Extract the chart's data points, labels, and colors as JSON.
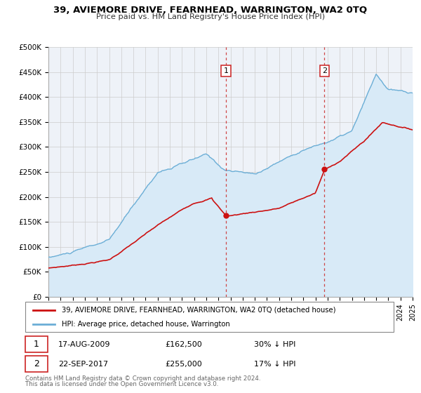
{
  "title": "39, AVIEMORE DRIVE, FEARNHEAD, WARRINGTON, WA2 0TQ",
  "subtitle": "Price paid vs. HM Land Registry's House Price Index (HPI)",
  "ylim": [
    0,
    500000
  ],
  "xlim_start": 1995,
  "xlim_end": 2025,
  "yticks": [
    0,
    50000,
    100000,
    150000,
    200000,
    250000,
    300000,
    350000,
    400000,
    450000,
    500000
  ],
  "ytick_labels": [
    "£0",
    "£50K",
    "£100K",
    "£150K",
    "£200K",
    "£250K",
    "£300K",
    "£350K",
    "£400K",
    "£450K",
    "£500K"
  ],
  "xticks": [
    1995,
    1996,
    1997,
    1998,
    1999,
    2000,
    2001,
    2002,
    2003,
    2004,
    2005,
    2006,
    2007,
    2008,
    2009,
    2010,
    2011,
    2012,
    2013,
    2014,
    2015,
    2016,
    2017,
    2018,
    2019,
    2020,
    2021,
    2022,
    2023,
    2024,
    2025
  ],
  "transaction1_date": 2009.627,
  "transaction1_price": 162500,
  "transaction2_date": 2017.728,
  "transaction2_price": 255000,
  "hpi_color": "#6baed6",
  "hpi_fill_color": "#d8eaf7",
  "price_color": "#cc1111",
  "dashed_color": "#cc3333",
  "bg_color": "#eef2f8",
  "grid_color": "#cccccc",
  "legend_label1": "39, AVIEMORE DRIVE, FEARNHEAD, WARRINGTON, WA2 0TQ (detached house)",
  "legend_label2": "HPI: Average price, detached house, Warrington",
  "row1_date": "17-AUG-2009",
  "row1_price": "£162,500",
  "row1_pct": "30% ↓ HPI",
  "row2_date": "22-SEP-2017",
  "row2_price": "£255,000",
  "row2_pct": "17% ↓ HPI",
  "footer1": "Contains HM Land Registry data © Crown copyright and database right 2024.",
  "footer2": "This data is licensed under the Open Government Licence v3.0."
}
